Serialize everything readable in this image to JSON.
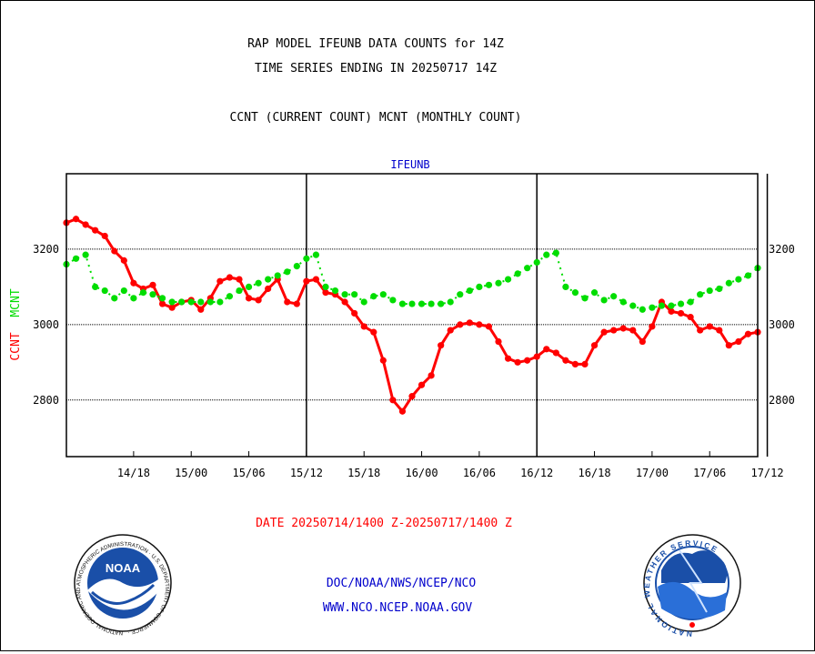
{
  "titles": {
    "line1": "RAP MODEL IFEUNB DATA COUNTS for 14Z",
    "line2": "TIME SERIES ENDING IN 20250717 14Z",
    "line3": "CCNT (CURRENT COUNT) MCNT (MONTHLY COUNT)"
  },
  "footer": {
    "date_range": "DATE 20250714/1400 Z-20250717/1400 Z",
    "org_path": "DOC/NOAA/NWS/NCEP/NCO",
    "website": "WWW.NCO.NCEP.NOAA.GOV"
  },
  "logos": {
    "noaa_center": "NOAA",
    "noaa_ring": "NATIONAL OCEANIC AND ATMOSPHERIC ADMINISTRATION · U.S. DEPARTMENT OF COMMERCE ·",
    "nws_ring": "NATIONAL WEATHER SERVICE"
  },
  "colors": {
    "ccnt": "#ff0000",
    "mcnt": "#00dd00",
    "title": "#000000",
    "date_text": "#ff0000",
    "link_text": "#0000cc",
    "panel_label": "#0000cc"
  },
  "chart_data": {
    "type": "line",
    "panel_label": "IFEUNB",
    "ylabel_ccnt": "CCNT",
    "ylabel_mcnt": "MCNT",
    "ylim": [
      2650,
      3400
    ],
    "yticks": [
      2800,
      3000,
      3200
    ],
    "ytick_labels": [
      "2800",
      "3000",
      "3200"
    ],
    "grid_y": true,
    "x_hours_range": [
      -3,
      69
    ],
    "xtick_hours": [
      4,
      10,
      16,
      22,
      28,
      34,
      40,
      46,
      52,
      58,
      64,
      70
    ],
    "xtick_labels": [
      "14/18",
      "15/00",
      "15/06",
      "15/12",
      "15/18",
      "16/00",
      "16/06",
      "16/12",
      "16/18",
      "17/00",
      "17/06",
      "17/12"
    ],
    "day_separators_hours": [
      22,
      46,
      70
    ],
    "x_hours": [
      -3,
      -2,
      -1,
      0,
      1,
      2,
      3,
      4,
      5,
      6,
      7,
      8,
      9,
      10,
      11,
      12,
      13,
      14,
      15,
      16,
      17,
      18,
      19,
      20,
      21,
      22,
      23,
      24,
      25,
      26,
      27,
      28,
      29,
      30,
      31,
      32,
      33,
      34,
      35,
      36,
      37,
      38,
      39,
      40,
      41,
      42,
      43,
      44,
      45,
      46,
      47,
      48,
      49,
      50,
      51,
      52,
      53,
      54,
      55,
      56,
      57,
      58,
      59,
      60,
      61,
      62,
      63,
      64,
      65,
      66,
      67,
      68,
      69
    ],
    "series": [
      {
        "name": "CCNT",
        "color": "#ff0000",
        "style": "solid",
        "values": [
          3270,
          3280,
          3265,
          3250,
          3235,
          3195,
          3170,
          3110,
          3095,
          3105,
          3055,
          3045,
          3060,
          3065,
          3040,
          3070,
          3115,
          3125,
          3120,
          3070,
          3065,
          3095,
          3120,
          3060,
          3055,
          3115,
          3120,
          3085,
          3080,
          3060,
          3030,
          2995,
          2980,
          2905,
          2800,
          2770,
          2810,
          2840,
          2865,
          2945,
          2985,
          3000,
          3005,
          3000,
          2995,
          2955,
          2910,
          2900,
          2905,
          2915,
          2935,
          2925,
          2905,
          2895,
          2895,
          2945,
          2980,
          2985,
          2990,
          2985,
          2955,
          2995,
          3060,
          3035,
          3030,
          3020,
          2985,
          2995,
          2985,
          2945,
          2955,
          2975,
          2980
        ]
      },
      {
        "name": "MCNT",
        "color": "#00dd00",
        "style": "dotted",
        "values": [
          3160,
          3175,
          3185,
          3100,
          3090,
          3070,
          3090,
          3070,
          3085,
          3080,
          3070,
          3060,
          3060,
          3060,
          3060,
          3060,
          3060,
          3075,
          3090,
          3100,
          3110,
          3120,
          3130,
          3140,
          3155,
          3175,
          3185,
          3100,
          3090,
          3080,
          3080,
          3060,
          3075,
          3080,
          3065,
          3055,
          3055,
          3055,
          3055,
          3055,
          3060,
          3080,
          3090,
          3100,
          3105,
          3110,
          3120,
          3135,
          3150,
          3165,
          3185,
          3190,
          3100,
          3085,
          3070,
          3085,
          3065,
          3075,
          3060,
          3050,
          3040,
          3045,
          3050,
          3050,
          3055,
          3060,
          3080,
          3090,
          3095,
          3110,
          3120,
          3130,
          3150
        ]
      }
    ]
  }
}
